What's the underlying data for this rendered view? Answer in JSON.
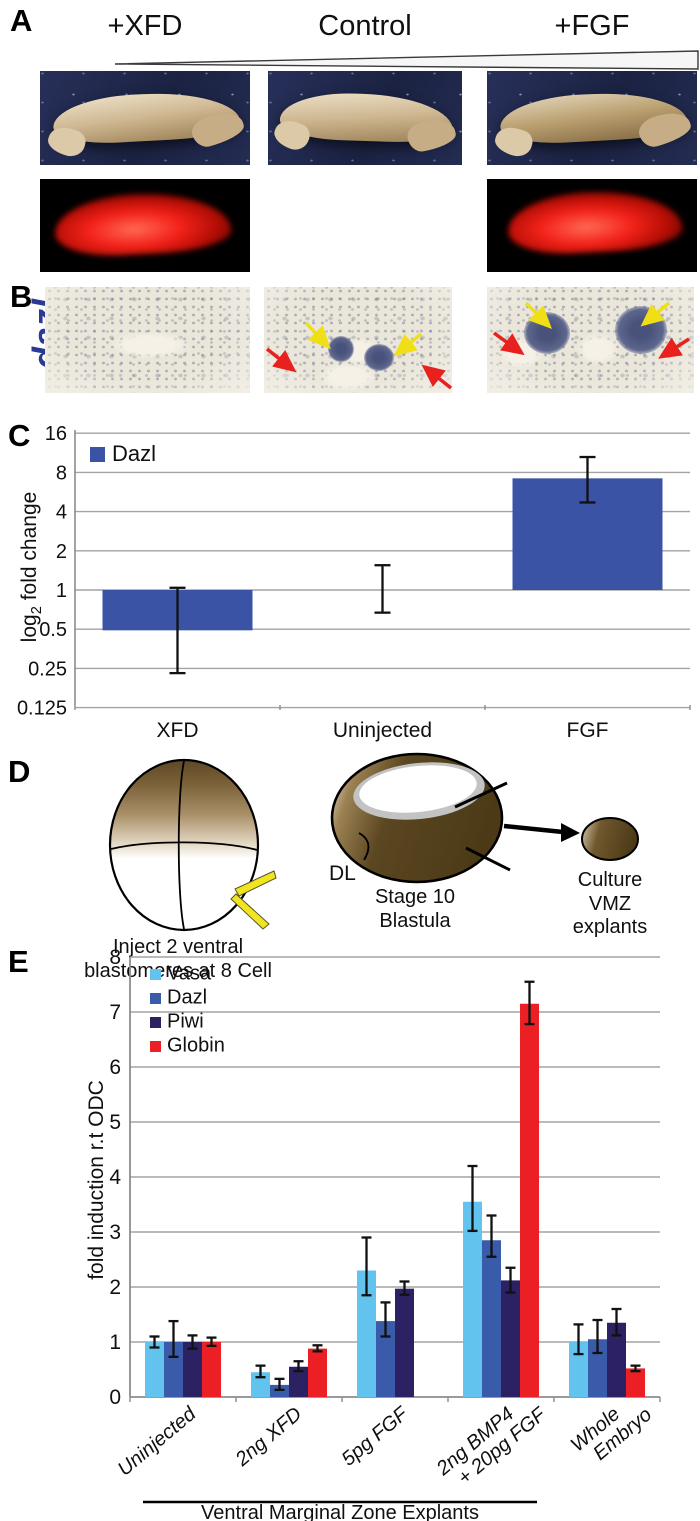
{
  "figure": {
    "panel_a": {
      "letter": "A",
      "conditions": [
        "+XFD",
        "Control",
        "+FGF"
      ]
    },
    "panel_b": {
      "letter": "B",
      "gene_label": "dazl"
    },
    "panel_c": {
      "letter": "C"
    },
    "panel_d": {
      "letter": "D",
      "embryo_caption": [
        "Inject 2 ventral",
        "blastomeres at 8 Cell"
      ],
      "dl_label": "DL",
      "blastula_caption": [
        "Stage 10",
        "Blastula"
      ],
      "explant_caption": [
        "Culture",
        "VMZ",
        "explants"
      ]
    },
    "panel_e": {
      "letter": "E"
    }
  },
  "chart_data": [
    {
      "type": "bar",
      "panel": "C",
      "scale": "log2",
      "ylabel": "log2 fold change",
      "ylabel_parts": [
        "log",
        "2",
        " fold change"
      ],
      "yticks": [
        16,
        8,
        4,
        2,
        1,
        0.5,
        0.25,
        0.125
      ],
      "ylim": [
        0.125,
        16
      ],
      "baseline": 1,
      "grid": true,
      "legend_position": "top-left",
      "categories": [
        "XFD",
        "Uninjected",
        "FGF"
      ],
      "series": [
        {
          "name": "Dazl",
          "color": "#3A53A4",
          "values": [
            0.49,
            1.0,
            7.2
          ],
          "err_low": [
            0.23,
            0.67,
            4.7
          ],
          "err_high": [
            1.04,
            1.55,
            10.5
          ]
        }
      ]
    },
    {
      "type": "bar",
      "panel": "E",
      "scale": "linear",
      "ylabel": "fold induction r.t ODC",
      "ylim": [
        0,
        8
      ],
      "yticks": [
        0,
        1,
        2,
        3,
        4,
        5,
        6,
        7,
        8
      ],
      "grid": true,
      "legend_position": "top-left",
      "categories": [
        "Uninjected",
        "2ng XFD",
        "5pg FGF",
        "2ng BMP4\n+ 20pg FGF",
        "Whole\nEmbryo"
      ],
      "series": [
        {
          "name": "Vasa",
          "color": "#62C3EE",
          "values": [
            1.0,
            0.45,
            2.3,
            3.55,
            1.0
          ],
          "err_low": [
            0.9,
            0.36,
            1.85,
            3.02,
            0.78
          ],
          "err_high": [
            1.1,
            0.57,
            2.9,
            4.2,
            1.32
          ]
        },
        {
          "name": "Dazl",
          "color": "#3A5BA9",
          "values": [
            1.0,
            0.22,
            1.38,
            2.85,
            1.05
          ],
          "err_low": [
            0.73,
            0.13,
            1.1,
            2.55,
            0.8
          ],
          "err_high": [
            1.38,
            0.33,
            1.72,
            3.3,
            1.4
          ]
        },
        {
          "name": "Piwi",
          "color": "#2B2163",
          "values": [
            1.0,
            0.55,
            1.97,
            2.12,
            1.35
          ],
          "err_low": [
            0.88,
            0.47,
            1.86,
            1.9,
            1.12
          ],
          "err_high": [
            1.12,
            0.65,
            2.1,
            2.35,
            1.6
          ]
        },
        {
          "name": "Globin",
          "color": "#EC2024",
          "values": [
            1.0,
            0.88,
            null,
            7.15,
            0.52
          ],
          "err_low": [
            0.93,
            0.83,
            null,
            6.78,
            0.47
          ],
          "err_high": [
            1.08,
            0.94,
            null,
            7.55,
            0.57
          ]
        }
      ],
      "annotation": {
        "label": "Ventral Marginal Zone Explants",
        "covers_categories": [
          0,
          3
        ]
      }
    }
  ]
}
